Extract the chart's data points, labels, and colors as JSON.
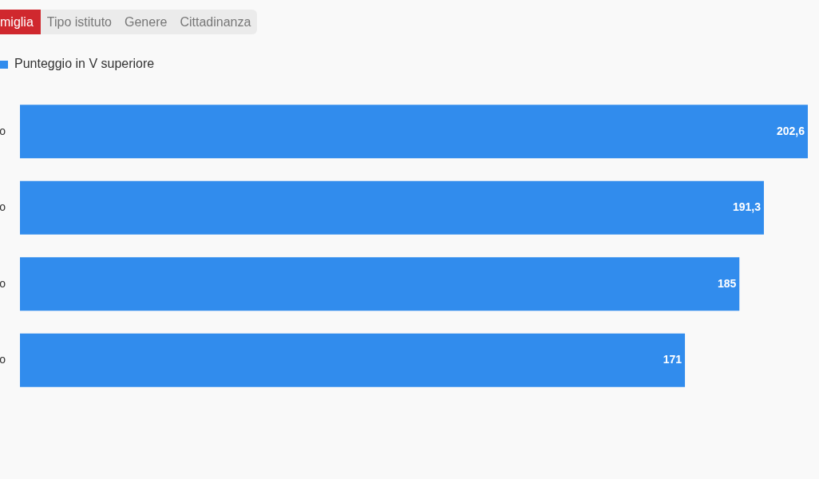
{
  "chart_data": {
    "type": "bar",
    "orientation": "horizontal",
    "categories": [
      "o",
      "o",
      "o",
      "o"
    ],
    "series": [
      {
        "name": "Punteggio in V superiore",
        "color": "#318ced",
        "values": [
          202.6,
          191.3,
          185,
          171
        ],
        "value_labels": [
          "202,6",
          "191,3",
          "185",
          "171"
        ]
      }
    ],
    "legend": "top left",
    "tick_labels": "y",
    "annotations": [
      "miglia",
      "Tipo istituto",
      "Genere",
      "Cittadinanza"
    ]
  }
}
